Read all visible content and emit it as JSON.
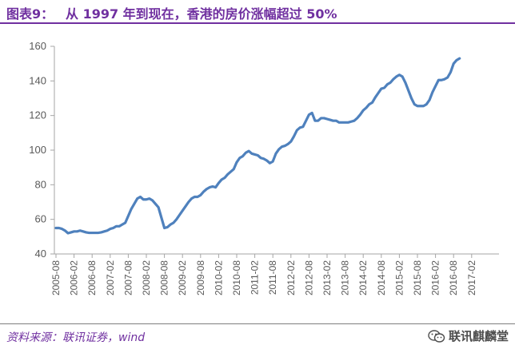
{
  "header": {
    "figure_label": "图表9：",
    "title": "从 1997 年到现在，香港的房价涨幅超过 50%"
  },
  "footer": {
    "source": "资料来源：联讯证券，wind",
    "watermark": "联讯麒麟堂",
    "watermark_icon": "wechat-icon"
  },
  "colors": {
    "accent": "#7030a0",
    "series": "#4f81bd",
    "axis_text": "#595959",
    "axis_line": "#a6a6a6"
  },
  "chart_data": {
    "type": "line",
    "title": "",
    "xlabel": "",
    "ylabel": "",
    "ylim": [
      40,
      160
    ],
    "yticks": [
      40,
      60,
      80,
      100,
      120,
      140,
      160
    ],
    "grid": false,
    "legend": "none",
    "xticks": [
      "2005-08",
      "2006-02",
      "2006-08",
      "2007-02",
      "2007-08",
      "2008-02",
      "2008-08",
      "2009-02",
      "2009-08",
      "2010-02",
      "2010-08",
      "2011-02",
      "2011-08",
      "2012-02",
      "2012-08",
      "2013-02",
      "2013-08",
      "2014-02",
      "2014-08",
      "2015-02",
      "2015-08",
      "2016-02",
      "2016-08",
      "2017-02"
    ],
    "x_start": "2005-08",
    "series": [
      {
        "values": [
          55,
          55,
          54.5,
          53.5,
          52,
          52.5,
          53,
          53,
          53.5,
          53,
          52.5,
          52.2,
          52.2,
          52.2,
          52.2,
          52.5,
          53,
          53.5,
          54.5,
          55,
          56,
          56,
          57,
          58,
          62,
          66,
          69,
          72,
          73,
          71.5,
          71.5,
          72,
          71,
          69,
          67,
          61,
          55,
          55.5,
          57,
          58,
          60,
          62.5,
          65,
          67.5,
          70,
          72,
          73,
          73,
          74,
          76,
          77.5,
          78.5,
          79,
          78.5,
          81,
          83,
          84,
          86,
          87.5,
          89,
          93,
          95.5,
          96.5,
          98.5,
          99.5,
          98,
          97.5,
          97,
          95.5,
          95,
          94,
          92.5,
          93.5,
          98,
          100.5,
          102,
          102.5,
          103.5,
          105,
          108,
          111.5,
          113,
          113.5,
          117,
          120.5,
          121.5,
          117,
          117,
          118.5,
          118.5,
          118,
          117.5,
          117,
          117,
          116,
          116,
          116,
          116,
          116.5,
          117,
          118.5,
          120.5,
          123,
          124.5,
          126.5,
          127.5,
          130.5,
          133,
          135.5,
          136,
          138,
          139,
          141,
          142.5,
          143.5,
          142.5,
          139,
          134.5,
          130,
          126.5,
          125.5,
          125.5,
          125.5,
          126.5,
          129,
          133.5,
          137,
          140.5,
          140.5,
          141,
          142,
          145,
          150,
          152,
          153
        ]
      }
    ]
  }
}
